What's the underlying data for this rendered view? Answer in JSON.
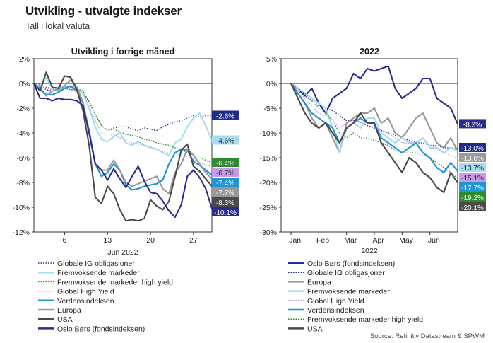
{
  "header": {
    "title": "Utvikling - utvalgte indekser",
    "subtitle": "Tall i lokal valuta",
    "source": "Source: Refinitiv Datastream & SPWM"
  },
  "colors": {
    "Globale IG obligasjoner": "#1f2d8a",
    "Fremvoksende markeder": "#a6dcf0",
    "Fremvoksende markeder high yield": "#2e8b2e",
    "Global High Yield": "#c99ae8",
    "Verdensindeksen": "#1f95d4",
    "Europa": "#999999",
    "USA": "#4a4a4a",
    "Oslo Børs (fondsindeksen)": "#2b2c8f"
  },
  "chart_data": [
    {
      "type": "line",
      "title": "Utvikling i forrige måned",
      "xlabel": "Jun 2022",
      "x_ticks": [
        "6",
        "13",
        "20",
        "27"
      ],
      "x_tick_days": [
        6,
        13,
        20,
        27
      ],
      "xlim": [
        1,
        30
      ],
      "ylim": [
        -12,
        2
      ],
      "y_ticks": [
        "2%",
        "0%",
        "-2%",
        "-4%",
        "-6%",
        "-8%",
        "-10%",
        "-12%"
      ],
      "grid": false,
      "legend_position": "bottom",
      "x": [
        1,
        2,
        3,
        4,
        5,
        6,
        7,
        8,
        9,
        10,
        11,
        12,
        13,
        14,
        15,
        16,
        17,
        18,
        19,
        20,
        21,
        22,
        23,
        24,
        25,
        26,
        27,
        28,
        29,
        30
      ],
      "series": [
        {
          "name": "Globale IG obligasjoner",
          "style": "dotted",
          "label": "-2.6%",
          "values": [
            0,
            -0.2,
            -0.5,
            -0.6,
            -0.5,
            -0.4,
            -0.5,
            -0.5,
            -0.7,
            -1.5,
            -2.5,
            -3.4,
            -3.8,
            -3.6,
            -3.5,
            -3.5,
            -3.7,
            -3.8,
            -3.6,
            -3.7,
            -3.8,
            -3.5,
            -3.3,
            -3.1,
            -3,
            -2.8,
            -2.6,
            -2.7,
            -2.6,
            -2.6
          ]
        },
        {
          "name": "Fremvoksende markeder",
          "style": "solid",
          "label": "-4.6%",
          "values": [
            0,
            -0.3,
            0.5,
            -0.4,
            -0.6,
            -0.3,
            -0.2,
            -0.4,
            -0.8,
            -2,
            -3.5,
            -4.5,
            -4.7,
            -4.3,
            -4,
            -4.8,
            -5,
            -4.7,
            -5,
            -5.2,
            -5.3,
            -5.6,
            -5.8,
            -4.8,
            -4.5,
            -3.5,
            -2.8,
            -2.4,
            -3.4,
            -4.6
          ]
        },
        {
          "name": "Fremvoksende markeder high yield",
          "style": "dotted",
          "label": "-6.4%",
          "values": [
            0,
            -0.1,
            -0.3,
            -0.4,
            -0.3,
            -0.2,
            -0.3,
            -0.4,
            -0.6,
            -1.5,
            -2.5,
            -3.4,
            -3.8,
            -3.7,
            -3.9,
            -4.1,
            -4.2,
            -4.3,
            -4.5,
            -4.6,
            -4.8,
            -4.9,
            -5.0,
            -5.2,
            -5.4,
            -5.6,
            -5.8,
            -6,
            -6.2,
            -6.4
          ]
        },
        {
          "name": "Global High Yield",
          "style": "dotted",
          "label": "-6.7%",
          "values": [
            0,
            -0.2,
            -0.4,
            -0.5,
            -0.4,
            -0.3,
            -0.4,
            -0.5,
            -0.8,
            -1.8,
            -3,
            -4,
            -4.3,
            -4.1,
            -4.4,
            -4.6,
            -4.8,
            -4.9,
            -5,
            -5.1,
            -5.3,
            -5.5,
            -5.6,
            -5.7,
            -5.8,
            -5.9,
            -6.1,
            -6.4,
            -6.6,
            -6.7
          ]
        },
        {
          "name": "Verdensindeksen",
          "style": "solid",
          "label": "-7.4%",
          "values": [
            0,
            -0.4,
            -0.9,
            -0.9,
            -0.7,
            -0.4,
            -0.2,
            -0.6,
            -1.6,
            -3.8,
            -6.5,
            -7.5,
            -7.2,
            -6.5,
            -7,
            -8.2,
            -8.6,
            -8.5,
            -8.3,
            -8.2,
            -8.1,
            -7.8,
            -6.5,
            -5.6,
            -5.3,
            -5.4,
            -6.3,
            -6.6,
            -7,
            -7.4
          ]
        },
        {
          "name": "Europa",
          "style": "solid",
          "label": "-7.7%",
          "values": [
            0,
            -0.5,
            -1,
            -0.6,
            -0.5,
            -0.2,
            0.3,
            -0.3,
            -1.5,
            -4,
            -6.6,
            -7,
            -7,
            -6.2,
            -7,
            -8,
            -8.3,
            -8.1,
            -7.9,
            -7.7,
            -7.5,
            -8.5,
            -8.9,
            -7.2,
            -6.5,
            -5.3,
            -5.8,
            -6.5,
            -7.2,
            -7.7
          ]
        },
        {
          "name": "USA",
          "style": "solid",
          "label": "-8.3%",
          "values": [
            0,
            -0.6,
            0.9,
            -0.3,
            -0.4,
            0.6,
            0.5,
            -0.5,
            -2.2,
            -5,
            -9.2,
            -9.7,
            -8.3,
            -8.9,
            -10.2,
            -11.1,
            -11,
            -11.1,
            -10.9,
            -9.4,
            -9.9,
            -10.2,
            -9.5,
            -7.5,
            -5.4,
            -4.9,
            -6.7,
            -7.1,
            -7.7,
            -8.3
          ]
        },
        {
          "name": "Oslo Børs (fondsindeksen)",
          "style": "solid",
          "label": "-10.1%",
          "values": [
            0,
            -1.2,
            -1.2,
            -1.4,
            -1.2,
            -1.3,
            -1.3,
            -1.4,
            -1.8,
            -4,
            -6.5,
            -7,
            -7.8,
            -6.9,
            -7.7,
            -8.4,
            -7.5,
            -6.7,
            -7.9,
            -8.8,
            -8.9,
            -9.5,
            -10.3,
            -10.8,
            -9.8,
            -7.5,
            -7,
            -7.6,
            -8.5,
            -10.1
          ]
        }
      ]
    },
    {
      "type": "line",
      "title": "2022",
      "xlabel": "2022",
      "x_ticks": [
        "Jan",
        "Feb",
        "Mar",
        "Apr",
        "May",
        "Jun"
      ],
      "xlim": [
        0,
        6
      ],
      "ylim": [
        -30,
        5
      ],
      "y_ticks": [
        "5%",
        "0%",
        "-5%",
        "-10%",
        "-15%",
        "-20%",
        "-25%",
        "-30%"
      ],
      "grid": false,
      "legend_position": "bottom",
      "x_months": [
        0,
        0.25,
        0.5,
        0.75,
        1,
        1.25,
        1.5,
        1.75,
        2,
        2.25,
        2.5,
        2.75,
        3,
        3.25,
        3.5,
        3.75,
        4,
        4.25,
        4.5,
        4.75,
        5,
        5.25,
        5.5,
        5.75,
        6
      ],
      "series": [
        {
          "name": "Oslo Børs (fondsindeksen)",
          "style": "solid",
          "label": "-8.2%",
          "values": [
            0,
            -1,
            -2.5,
            -1,
            -4,
            -6,
            -3,
            -2,
            -1,
            2,
            1,
            3,
            2.5,
            3,
            3.5,
            -1,
            -3,
            -2,
            -1,
            1,
            1,
            -3,
            -4,
            -5,
            -8.2
          ]
        },
        {
          "name": "Globale IG obligasjoner",
          "style": "dotted",
          "label": "-13.0%",
          "values": [
            0,
            -1.5,
            -2.5,
            -3.5,
            -4.5,
            -5,
            -5.5,
            -6.5,
            -7.5,
            -7.5,
            -7.8,
            -8.5,
            -9,
            -9.5,
            -10,
            -10.5,
            -11,
            -11.5,
            -12,
            -12,
            -12.5,
            -12.5,
            -13,
            -13,
            -13.0
          ]
        },
        {
          "name": "Europa",
          "style": "solid",
          "label": "-13.6%",
          "values": [
            0,
            -2,
            -4,
            -7,
            -9,
            -8,
            -11,
            -14,
            -8,
            -7,
            -6,
            -6,
            -5,
            -8,
            -7,
            -10,
            -11,
            -9,
            -7,
            -6,
            -9,
            -12,
            -13,
            -11,
            -13.6
          ]
        },
        {
          "name": "Fremvoksende markeder",
          "style": "solid",
          "label": "-13.7%",
          "values": [
            0,
            -1,
            -2,
            -3,
            -4,
            -5,
            -9,
            -14,
            -9,
            -8,
            -9,
            -7,
            -7,
            -10,
            -11,
            -12,
            -11,
            -12,
            -12,
            -11,
            -13,
            -13,
            -14,
            -13,
            -13.7
          ]
        },
        {
          "name": "Global High Yield",
          "style": "dotted",
          "label": "-15.1%",
          "values": [
            0,
            -1.5,
            -3,
            -4.5,
            -6,
            -6.5,
            -7.5,
            -9,
            -8,
            -7.5,
            -8,
            -8,
            -8.5,
            -9.5,
            -10,
            -11,
            -12,
            -12,
            -12,
            -11,
            -12.5,
            -13,
            -14,
            -14.5,
            -15.1
          ]
        },
        {
          "name": "Verdensindeksen",
          "style": "solid",
          "label": "-17.7%",
          "values": [
            0,
            -2,
            -4,
            -6,
            -7,
            -8,
            -9,
            -12,
            -9,
            -8,
            -7,
            -8,
            -8,
            -11,
            -12,
            -13,
            -14,
            -13,
            -12,
            -14,
            -15,
            -17,
            -18,
            -16,
            -17.7
          ]
        },
        {
          "name": "Fremvoksende markeder high yield",
          "style": "dotted",
          "label": "-19.2%",
          "values": [
            0,
            -1,
            -2,
            -3.5,
            -5,
            -6,
            -7.5,
            -10,
            -11,
            -10,
            -11,
            -11,
            -11.5,
            -12,
            -12.5,
            -13.5,
            -14,
            -14,
            -14,
            -14.5,
            -15,
            -16,
            -17,
            -18,
            -19.2
          ]
        },
        {
          "name": "USA",
          "style": "solid",
          "label": "-20.1%",
          "values": [
            0,
            -3,
            -6,
            -8,
            -9,
            -8,
            -10,
            -12,
            -9,
            -8,
            -6,
            -8,
            -8,
            -12,
            -14,
            -16,
            -18,
            -15,
            -16,
            -18,
            -19,
            -21,
            -22,
            -18,
            -20.1
          ]
        }
      ]
    }
  ],
  "legend_left": [
    "Globale IG obligasjoner",
    "Fremvoksende markeder",
    "Fremvoksende markeder high yield",
    "Global High Yield",
    "Verdensindeksen",
    "Europa",
    "USA",
    "Oslo Børs (fondsindeksen)"
  ],
  "legend_right": [
    "Oslo Børs (fondsindeksen)",
    "Globale IG obligasjoner",
    "Europa",
    "Fremvoksende markeder",
    "Global High Yield",
    "Verdensindeksen",
    "Fremvoksende markeder high yield",
    "USA"
  ]
}
